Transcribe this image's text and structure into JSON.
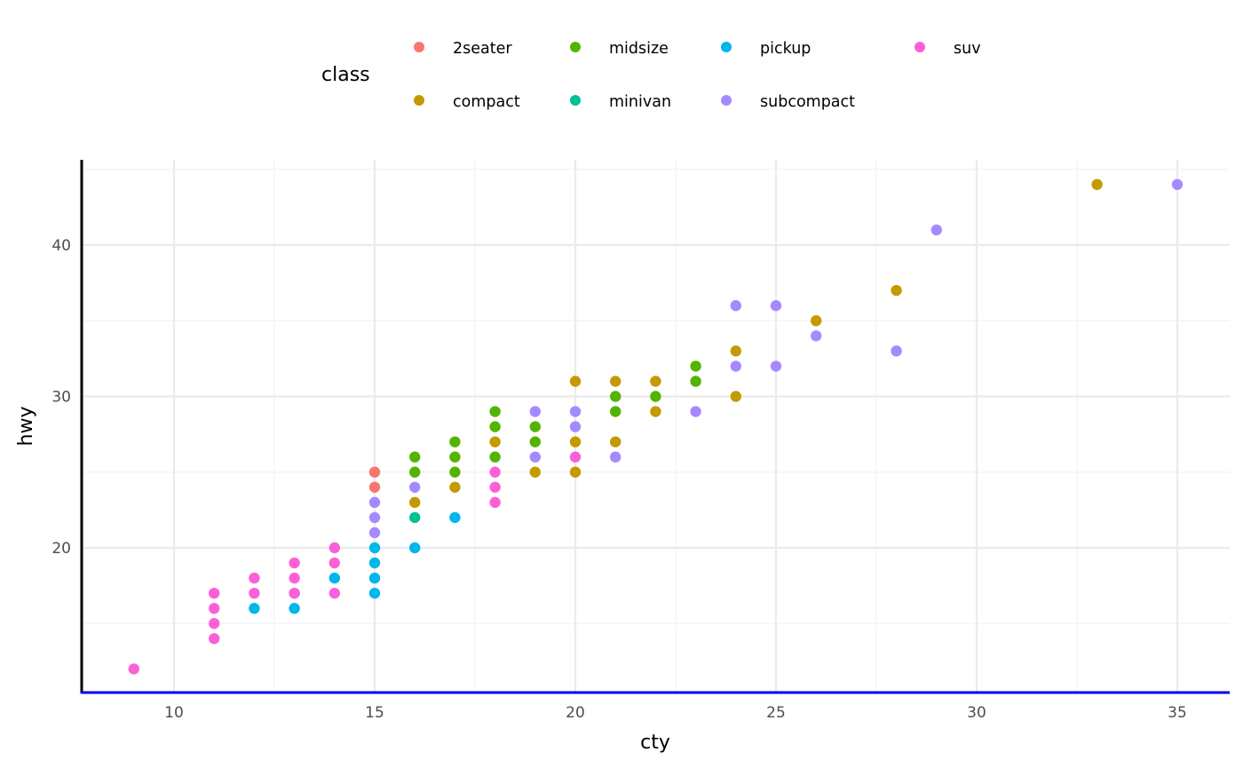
{
  "chart_data": {
    "type": "scatter",
    "title": "",
    "xlabel": "cty",
    "ylabel": "hwy",
    "xlim": [
      7.7,
      36.3
    ],
    "ylim": [
      10.4,
      45.6
    ],
    "x_ticks": [
      10,
      15,
      20,
      25,
      30,
      35
    ],
    "y_ticks": [
      20,
      30,
      40
    ],
    "grid": true,
    "legend": {
      "title": "class",
      "position": "top",
      "entries": [
        {
          "name": "2seater",
          "color": "#F8766D"
        },
        {
          "name": "compact",
          "color": "#C49A00"
        },
        {
          "name": "midsize",
          "color": "#53B400"
        },
        {
          "name": "minivan",
          "color": "#00C094"
        },
        {
          "name": "pickup",
          "color": "#00B6EB"
        },
        {
          "name": "subcompact",
          "color": "#A58AFF"
        },
        {
          "name": "suv",
          "color": "#FB61D7"
        }
      ]
    },
    "series": [
      {
        "name": "2seater",
        "color": "#F8766D",
        "points": [
          [
            15,
            25
          ],
          [
            15,
            24
          ]
        ]
      },
      {
        "name": "compact",
        "color": "#C49A00",
        "points": [
          [
            16,
            23
          ],
          [
            17,
            24
          ],
          [
            18,
            27
          ],
          [
            19,
            25
          ],
          [
            20,
            31
          ],
          [
            20,
            27
          ],
          [
            20,
            25
          ],
          [
            21,
            31
          ],
          [
            21,
            27
          ],
          [
            22,
            31
          ],
          [
            22,
            29
          ],
          [
            24,
            33
          ],
          [
            24,
            30
          ],
          [
            26,
            35
          ],
          [
            28,
            37
          ],
          [
            33,
            44
          ]
        ]
      },
      {
        "name": "midsize",
        "color": "#53B400",
        "points": [
          [
            16,
            26
          ],
          [
            16,
            25
          ],
          [
            17,
            27
          ],
          [
            17,
            26
          ],
          [
            17,
            25
          ],
          [
            18,
            29
          ],
          [
            18,
            28
          ],
          [
            18,
            26
          ],
          [
            19,
            28
          ],
          [
            19,
            27
          ],
          [
            21,
            30
          ],
          [
            21,
            29
          ],
          [
            22,
            30
          ],
          [
            23,
            32
          ],
          [
            23,
            31
          ]
        ]
      },
      {
        "name": "minivan",
        "color": "#00C094",
        "points": [
          [
            16,
            22
          ]
        ]
      },
      {
        "name": "pickup",
        "color": "#00B6EB",
        "points": [
          [
            12,
            16
          ],
          [
            13,
            16
          ],
          [
            13,
            17
          ],
          [
            14,
            18
          ],
          [
            15,
            20
          ],
          [
            15,
            19
          ],
          [
            15,
            18
          ],
          [
            15,
            17
          ],
          [
            16,
            20
          ],
          [
            17,
            22
          ]
        ]
      },
      {
        "name": "subcompact",
        "color": "#A58AFF",
        "points": [
          [
            15,
            23
          ],
          [
            15,
            22
          ],
          [
            15,
            21
          ],
          [
            16,
            24
          ],
          [
            19,
            29
          ],
          [
            19,
            26
          ],
          [
            20,
            29
          ],
          [
            20,
            28
          ],
          [
            21,
            26
          ],
          [
            23,
            29
          ],
          [
            24,
            36
          ],
          [
            24,
            32
          ],
          [
            25,
            36
          ],
          [
            25,
            32
          ],
          [
            26,
            34
          ],
          [
            28,
            33
          ],
          [
            29,
            41
          ],
          [
            35,
            44
          ]
        ]
      },
      {
        "name": "suv",
        "color": "#FB61D7",
        "points": [
          [
            9,
            12
          ],
          [
            11,
            17
          ],
          [
            11,
            16
          ],
          [
            11,
            15
          ],
          [
            11,
            14
          ],
          [
            12,
            18
          ],
          [
            12,
            17
          ],
          [
            13,
            19
          ],
          [
            13,
            18
          ],
          [
            13,
            17
          ],
          [
            14,
            20
          ],
          [
            14,
            19
          ],
          [
            14,
            17
          ],
          [
            18,
            25
          ],
          [
            18,
            24
          ],
          [
            18,
            23
          ],
          [
            20,
            26
          ]
        ]
      }
    ],
    "styling": {
      "y_axis_line_color": "#000000",
      "x_axis_line_color": "#0000EE",
      "grid_major_color": "#EBEBEB",
      "grid_minor_color": "#F3F3F3"
    }
  }
}
